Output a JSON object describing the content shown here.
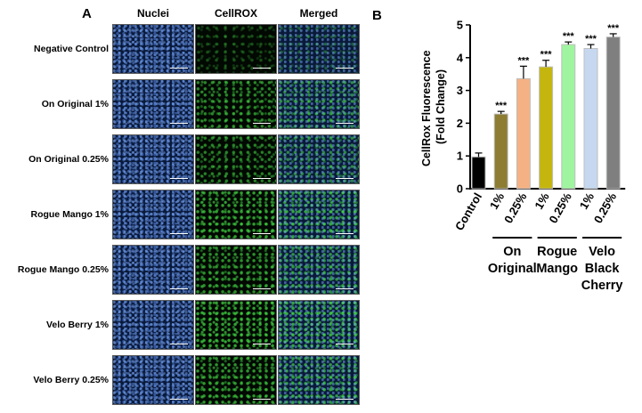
{
  "panel_a": {
    "letter": "A",
    "columns": [
      "Nuclei",
      "CellROX",
      "Merged"
    ],
    "rows": [
      {
        "label": "Negative Control",
        "green": 0.12
      },
      {
        "label": "On Original 1%",
        "green": 0.55
      },
      {
        "label": "On Original 0.25%",
        "green": 0.5
      },
      {
        "label": "Rogue Mango 1%",
        "green": 0.7
      },
      {
        "label": "Rogue Mango 0.25%",
        "green": 0.6
      },
      {
        "label": "Velo Berry 1%",
        "green": 0.75
      },
      {
        "label": "Velo Berry 0.25%",
        "green": 0.65
      }
    ]
  },
  "panel_b": {
    "letter": "B"
  },
  "colors": {
    "nuclei": "#1c3f8a",
    "cellrox": "#3cc83c",
    "bar_edge": "#bfbfbf"
  },
  "chart_data": {
    "type": "bar",
    "ylabel": "CellRox Fluorescence (Fold Change)",
    "ylabel_lines": [
      "CellRox Fluorescence",
      "(Fold Change)"
    ],
    "ylim": [
      0,
      5
    ],
    "yticks": [
      0,
      1,
      2,
      3,
      4,
      5
    ],
    "grid": false,
    "categories": [
      "Control",
      "1%",
      "0.25%",
      "1%",
      "0.25%",
      "1%",
      "0.25%"
    ],
    "values": [
      0.97,
      2.28,
      3.36,
      3.72,
      4.4,
      4.28,
      4.63
    ],
    "errors": [
      0.12,
      0.08,
      0.38,
      0.2,
      0.08,
      0.12,
      0.1
    ],
    "colors": [
      "#000000",
      "#8c7d33",
      "#f4b183",
      "#c4b60f",
      "#9ff59f",
      "#c5d8f0",
      "#7f7f7f"
    ],
    "annotations": [
      "",
      "***",
      "***",
      "***",
      "***",
      "***",
      "***"
    ],
    "groups": [
      {
        "label": "On Original",
        "lines": [
          "On",
          "Original"
        ],
        "bars": [
          1,
          2
        ]
      },
      {
        "label": "Rogue Mango",
        "lines": [
          "Rogue",
          "Mango"
        ],
        "bars": [
          3,
          4
        ]
      },
      {
        "label": "Velo Black Cherry",
        "lines": [
          "Velo",
          "Black",
          "Cherry"
        ],
        "bars": [
          5,
          6
        ]
      }
    ]
  }
}
